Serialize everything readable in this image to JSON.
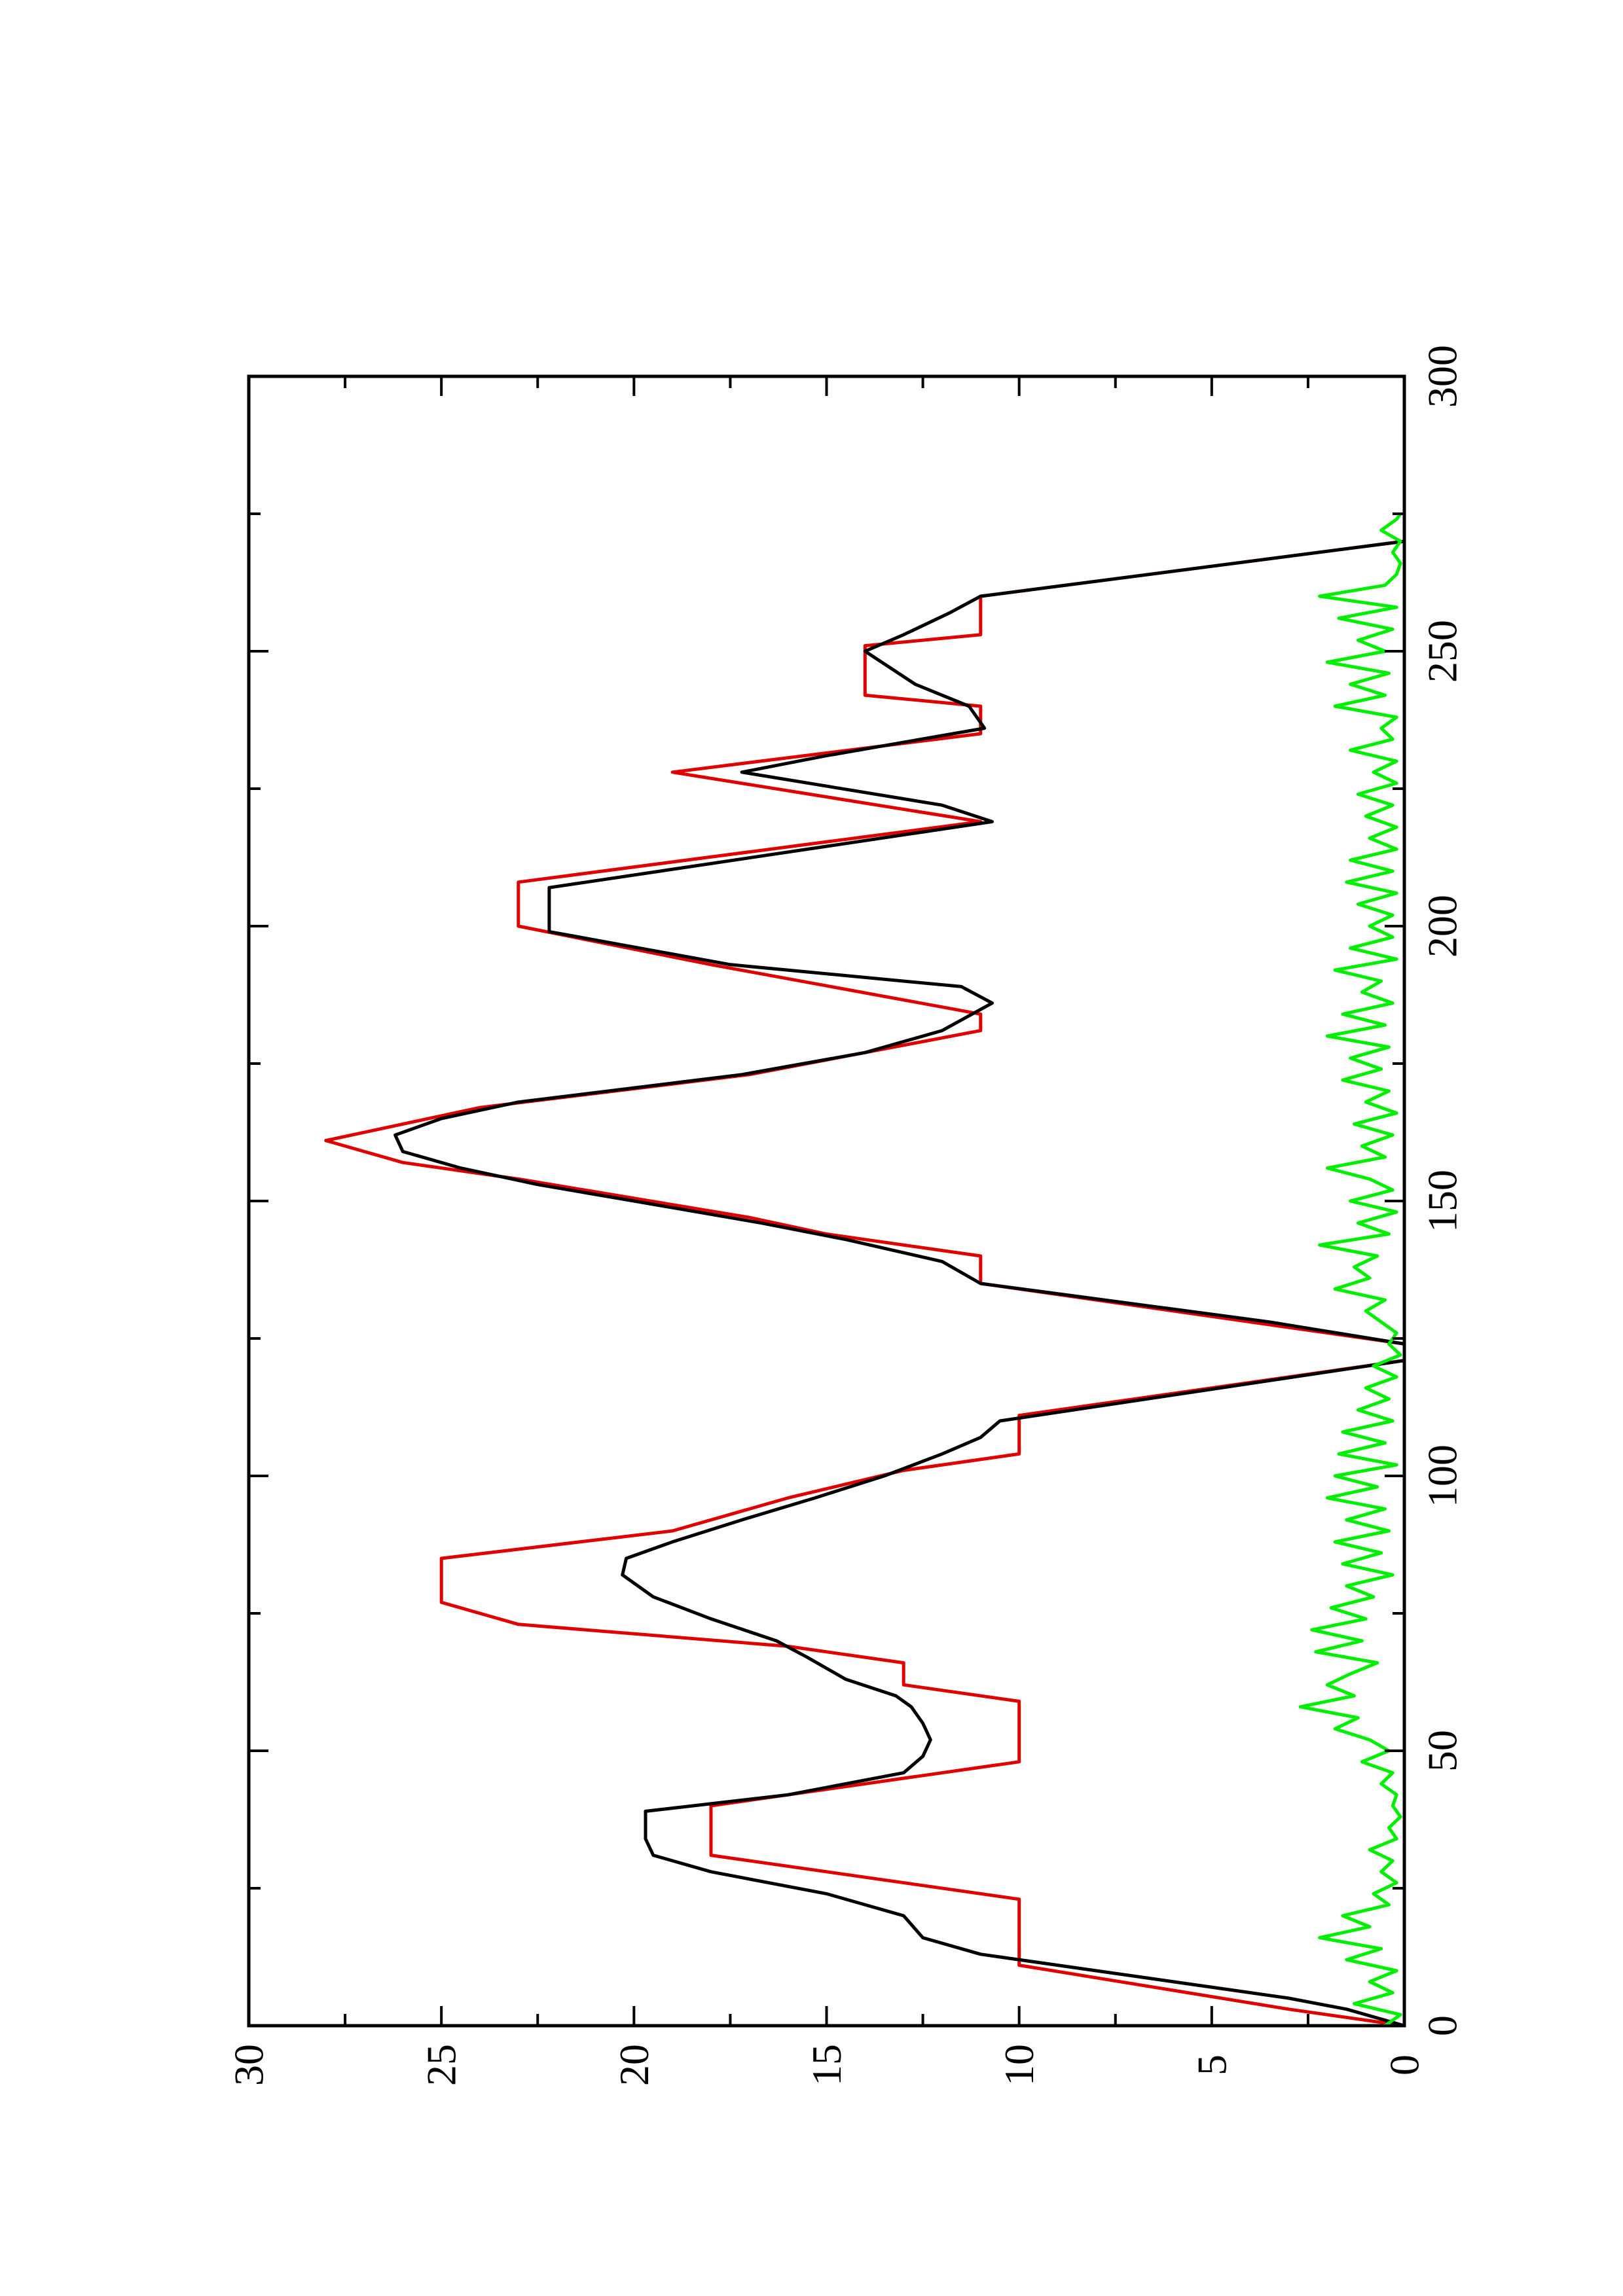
{
  "chart_data": {
    "type": "line",
    "orientation": "rotated-90-counterclockwise",
    "title": "",
    "xlabel": "",
    "ylabel": "",
    "xlim": [
      0,
      300
    ],
    "ylim": [
      0,
      30
    ],
    "x_ticks": [
      0,
      50,
      100,
      150,
      200,
      250,
      300
    ],
    "y_ticks": [
      0,
      5,
      10,
      15,
      20,
      25,
      30
    ],
    "x_tick_labels": [
      "0",
      "50",
      "100",
      "150",
      "200",
      "250",
      "300"
    ],
    "y_tick_labels": [
      "0",
      "5",
      "10",
      "15",
      "20",
      "25",
      "30"
    ],
    "grid": false,
    "legend": "none",
    "series": [
      {
        "color": "#e00000",
        "points": [
          [
            0,
            0
          ],
          [
            3,
            3
          ],
          [
            11,
            10
          ],
          [
            23,
            10
          ],
          [
            31,
            18
          ],
          [
            40,
            18
          ],
          [
            48,
            10
          ],
          [
            59,
            10
          ],
          [
            62,
            13
          ],
          [
            66,
            13
          ],
          [
            69,
            16
          ],
          [
            73,
            23
          ],
          [
            77,
            25
          ],
          [
            85,
            25
          ],
          [
            90,
            19
          ],
          [
            96,
            16
          ],
          [
            101,
            13
          ],
          [
            104,
            10
          ],
          [
            111,
            10
          ],
          [
            121,
            0
          ],
          [
            124,
            0
          ],
          [
            128,
            4
          ],
          [
            135,
            11
          ],
          [
            140,
            11
          ],
          [
            144,
            15
          ],
          [
            147,
            17
          ],
          [
            154,
            23
          ],
          [
            157,
            26
          ],
          [
            161,
            28
          ],
          [
            164,
            26
          ],
          [
            167,
            24
          ],
          [
            173,
            17
          ],
          [
            181,
            11
          ],
          [
            184,
            11
          ],
          [
            193,
            18
          ],
          [
            200,
            23
          ],
          [
            208,
            23
          ],
          [
            219,
            11
          ],
          [
            228,
            19
          ],
          [
            235,
            11
          ],
          [
            240,
            11
          ],
          [
            242,
            14
          ],
          [
            251,
            14
          ],
          [
            253,
            11
          ],
          [
            260,
            11
          ],
          [
            270,
            0
          ],
          [
            275,
            0
          ]
        ]
      },
      {
        "color": "#000000",
        "points": [
          [
            0,
            0
          ],
          [
            3,
            1.5
          ],
          [
            5,
            3
          ],
          [
            9,
            7
          ],
          [
            13,
            11
          ],
          [
            16,
            12.5
          ],
          [
            20,
            13
          ],
          [
            24,
            15
          ],
          [
            28,
            18
          ],
          [
            31,
            19.5
          ],
          [
            34,
            19.7
          ],
          [
            39,
            19.7
          ],
          [
            42,
            16
          ],
          [
            46,
            13
          ],
          [
            49,
            12.5
          ],
          [
            52,
            12.3
          ],
          [
            55,
            12.5
          ],
          [
            58,
            12.8
          ],
          [
            60,
            13.2
          ],
          [
            63,
            14.5
          ],
          [
            67,
            15.5
          ],
          [
            70,
            16.3
          ],
          [
            74,
            18
          ],
          [
            78,
            19.5
          ],
          [
            82,
            20.3
          ],
          [
            85,
            20.2
          ],
          [
            88,
            19
          ],
          [
            92,
            17.2
          ],
          [
            96,
            15.3
          ],
          [
            100,
            13.5
          ],
          [
            104,
            12
          ],
          [
            107,
            11
          ],
          [
            110,
            10.5
          ],
          [
            121,
            0
          ],
          [
            124,
            0
          ],
          [
            128,
            3.5
          ],
          [
            135,
            11
          ],
          [
            139,
            12
          ],
          [
            143,
            14.5
          ],
          [
            146,
            16.7
          ],
          [
            150,
            20
          ],
          [
            153,
            22.5
          ],
          [
            156,
            24.5
          ],
          [
            159,
            26
          ],
          [
            162,
            26.2
          ],
          [
            165,
            25
          ],
          [
            168,
            23
          ],
          [
            173,
            17.2
          ],
          [
            177,
            14
          ],
          [
            181,
            12
          ],
          [
            186,
            10.7
          ],
          [
            189,
            11.5
          ],
          [
            193,
            17.5
          ],
          [
            199,
            22.2
          ],
          [
            207,
            22.2
          ],
          [
            219,
            10.7
          ],
          [
            222,
            12
          ],
          [
            228,
            17.2
          ],
          [
            231,
            15
          ],
          [
            236,
            10.9
          ],
          [
            240,
            11.3
          ],
          [
            244,
            12.7
          ],
          [
            250,
            14
          ],
          [
            253,
            13
          ],
          [
            257,
            11.8
          ],
          [
            260,
            11
          ],
          [
            270,
            0
          ],
          [
            275,
            0
          ]
        ]
      },
      {
        "color": "#00ee00",
        "points": [
          [
            0,
            0.5
          ],
          [
            2,
            0.1
          ],
          [
            4,
            1.3
          ],
          [
            6,
            0.3
          ],
          [
            8,
            0.9
          ],
          [
            10,
            0.2
          ],
          [
            12,
            1.5
          ],
          [
            14,
            0.6
          ],
          [
            16,
            2.2
          ],
          [
            18,
            0.9
          ],
          [
            20,
            1.6
          ],
          [
            22,
            0.4
          ],
          [
            24,
            0.8
          ],
          [
            26,
            0.2
          ],
          [
            28,
            0.6
          ],
          [
            30,
            0.3
          ],
          [
            32,
            0.9
          ],
          [
            34,
            0.2
          ],
          [
            36,
            0.4
          ],
          [
            38,
            0.1
          ],
          [
            40,
            0.3
          ],
          [
            42,
            0.2
          ],
          [
            44,
            0.6
          ],
          [
            46,
            0.3
          ],
          [
            48,
            1.1
          ],
          [
            50,
            0.4
          ],
          [
            52,
            0.9
          ],
          [
            54,
            1.8
          ],
          [
            56,
            1.2
          ],
          [
            58,
            2.7
          ],
          [
            60,
            1.3
          ],
          [
            62,
            2.0
          ],
          [
            64,
            1.4
          ],
          [
            66,
            0.7
          ],
          [
            68,
            2.3
          ],
          [
            70,
            1.1
          ],
          [
            72,
            2.4
          ],
          [
            74,
            1.0
          ],
          [
            76,
            1.9
          ],
          [
            78,
            0.8
          ],
          [
            80,
            1.5
          ],
          [
            82,
            0.3
          ],
          [
            84,
            1.6
          ],
          [
            86,
            0.6
          ],
          [
            88,
            1.8
          ],
          [
            90,
            0.4
          ],
          [
            92,
            1.5
          ],
          [
            94,
            0.5
          ],
          [
            96,
            2.0
          ],
          [
            98,
            0.7
          ],
          [
            100,
            1.8
          ],
          [
            102,
            0.2
          ],
          [
            104,
            1.7
          ],
          [
            106,
            0.5
          ],
          [
            108,
            1.6
          ],
          [
            110,
            0.3
          ],
          [
            112,
            1.2
          ],
          [
            114,
            0.4
          ],
          [
            116,
            1.0
          ],
          [
            118,
            0.2
          ],
          [
            120,
            0.8
          ],
          [
            122,
            0.1
          ],
          [
            124,
            0.4
          ],
          [
            126,
            0.2
          ],
          [
            128,
            0.6
          ],
          [
            130,
            1.0
          ],
          [
            132,
            0.5
          ],
          [
            134,
            1.8
          ],
          [
            136,
            0.9
          ],
          [
            138,
            1.3
          ],
          [
            140,
            0.7
          ],
          [
            142,
            2.2
          ],
          [
            144,
            0.4
          ],
          [
            146,
            1.2
          ],
          [
            148,
            0.2
          ],
          [
            150,
            1.4
          ],
          [
            152,
            0.3
          ],
          [
            154,
            0.9
          ],
          [
            156,
            2.0
          ],
          [
            158,
            0.5
          ],
          [
            160,
            1.1
          ],
          [
            162,
            0.3
          ],
          [
            164,
            1.3
          ],
          [
            166,
            0.2
          ],
          [
            168,
            1.0
          ],
          [
            170,
            0.4
          ],
          [
            172,
            1.6
          ],
          [
            174,
            0.6
          ],
          [
            176,
            1.4
          ],
          [
            178,
            0.4
          ],
          [
            180,
            2.0
          ],
          [
            182,
            0.5
          ],
          [
            184,
            1.6
          ],
          [
            186,
            0.3
          ],
          [
            188,
            1.1
          ],
          [
            190,
            0.6
          ],
          [
            192,
            1.8
          ],
          [
            194,
            0.2
          ],
          [
            196,
            1.4
          ],
          [
            198,
            0.3
          ],
          [
            200,
            0.9
          ],
          [
            202,
            0.3
          ],
          [
            204,
            1.2
          ],
          [
            206,
            0.2
          ],
          [
            208,
            1.5
          ],
          [
            210,
            0.3
          ],
          [
            212,
            1.4
          ],
          [
            214,
            0.2
          ],
          [
            216,
            0.9
          ],
          [
            218,
            0.2
          ],
          [
            220,
            1.0
          ],
          [
            222,
            0.3
          ],
          [
            224,
            1.2
          ],
          [
            226,
            0.2
          ],
          [
            228,
            0.8
          ],
          [
            230,
            0.2
          ],
          [
            232,
            1.4
          ],
          [
            234,
            0.3
          ],
          [
            236,
            0.6
          ],
          [
            238,
            0.2
          ],
          [
            240,
            1.8
          ],
          [
            242,
            0.5
          ],
          [
            244,
            1.4
          ],
          [
            246,
            0.4
          ],
          [
            248,
            2.0
          ],
          [
            250,
            0.5
          ],
          [
            252,
            1.2
          ],
          [
            254,
            0.3
          ],
          [
            256,
            1.7
          ],
          [
            258,
            0.2
          ],
          [
            260,
            2.2
          ],
          [
            262,
            0.5
          ],
          [
            264,
            0.2
          ],
          [
            266,
            0.1
          ],
          [
            268,
            0.3
          ],
          [
            270,
            0.1
          ],
          [
            272,
            0.6
          ],
          [
            274,
            0.2
          ],
          [
            275,
            0.1
          ]
        ]
      }
    ]
  }
}
